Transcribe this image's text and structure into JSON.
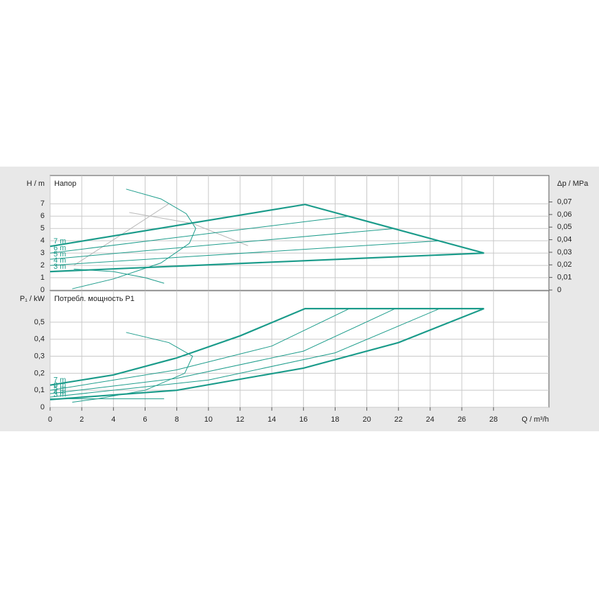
{
  "chart_data": [
    {
      "type": "line",
      "ylabel": "H / m",
      "title": "Напор",
      "y2label": "Δp / MPa",
      "xlim": [
        0,
        31.5
      ],
      "ylim": [
        0,
        9.3
      ],
      "yticks": [
        0,
        1,
        2,
        3,
        4,
        5,
        6,
        7
      ],
      "y2lim": [
        0,
        0.091
      ],
      "y2ticks": [
        0,
        {
          "value": 0.01,
          "label": "0,01"
        },
        {
          "value": 0.02,
          "label": "0,02"
        },
        {
          "value": 0.03,
          "label": "0,03"
        },
        {
          "value": 0.04,
          "label": "0,04"
        },
        {
          "value": 0.05,
          "label": "0,05"
        },
        {
          "value": 0.06,
          "label": "0,06"
        },
        {
          "value": 0.07,
          "label": "0,07"
        }
      ],
      "grid": true,
      "series": [
        {
          "name": "7 m",
          "color": "#1a9b8a",
          "line_width": 2.2,
          "x": [
            0,
            16.1,
            27.4
          ],
          "values": [
            3.55,
            6.95,
            3.0
          ]
        },
        {
          "name": "6 m",
          "color": "#1a9b8a",
          "line_width": 1,
          "x": [
            0,
            18.9
          ],
          "values": [
            3.0,
            6.0
          ]
        },
        {
          "name": "5 m",
          "color": "#1a9b8a",
          "line_width": 1,
          "x": [
            0,
            21.8
          ],
          "values": [
            2.5,
            5.0
          ]
        },
        {
          "name": "4 m",
          "color": "#1a9b8a",
          "line_width": 1,
          "x": [
            0,
            24.6
          ],
          "values": [
            2.0,
            4.0
          ]
        },
        {
          "name": "3 m",
          "color": "#1a9b8a",
          "line_width": 2.2,
          "x": [
            0,
            27.4
          ],
          "values": [
            1.5,
            3.0
          ]
        }
      ],
      "curves": [
        {
          "color": "#1a9b8a",
          "x": [
            4.8,
            7,
            8.6,
            9.2,
            8.8,
            7,
            4,
            1.4
          ],
          "values": [
            8.2,
            7.4,
            6.2,
            5.0,
            3.8,
            2.2,
            0.9,
            0.1
          ]
        },
        {
          "color": "#1a9b8a",
          "x": [
            1.5,
            4,
            6,
            7.2
          ],
          "values": [
            1.7,
            1.5,
            1.0,
            0.55
          ]
        },
        {
          "color": "#b8b8b8",
          "x": [
            1.5,
            7.5
          ],
          "values": [
            2.0,
            7.0
          ]
        },
        {
          "color": "#b8b8b8",
          "x": [
            5,
            9,
            12.5
          ],
          "values": [
            6.3,
            5.4,
            3.6
          ]
        }
      ]
    },
    {
      "type": "line",
      "ylabel": "P₁ / kW",
      "title": "Потребл. мощность P1",
      "xlabel": "Q / m³/h",
      "xlim": [
        0,
        31.5
      ],
      "xticks": [
        0,
        2,
        4,
        6,
        8,
        10,
        12,
        14,
        16,
        18,
        20,
        22,
        24,
        26,
        28
      ],
      "ylim": [
        0,
        0.685
      ],
      "yticks": [
        0,
        {
          "value": 0.1,
          "label": "0,1"
        },
        {
          "value": 0.2,
          "label": "0,2"
        },
        {
          "value": 0.3,
          "label": "0,3"
        },
        {
          "value": 0.4,
          "label": "0,4"
        },
        {
          "value": 0.5,
          "label": "0,5"
        }
      ],
      "grid": true,
      "series": [
        {
          "name": "7 m",
          "color": "#1a9b8a",
          "line_width": 2.2,
          "x": [
            0,
            4,
            8,
            12,
            16.1,
            27.4
          ],
          "values": [
            0.13,
            0.19,
            0.29,
            0.42,
            0.58,
            0.58
          ]
        },
        {
          "name": "6 m",
          "color": "#1a9b8a",
          "line_width": 1,
          "x": [
            0,
            8,
            14,
            18.9
          ],
          "values": [
            0.1,
            0.22,
            0.36,
            0.58
          ]
        },
        {
          "name": "5 m",
          "color": "#1a9b8a",
          "line_width": 1,
          "x": [
            0,
            8,
            16,
            21.8
          ],
          "values": [
            0.08,
            0.17,
            0.33,
            0.58
          ]
        },
        {
          "name": "4 m",
          "color": "#1a9b8a",
          "line_width": 1,
          "x": [
            0,
            10,
            18,
            24.6
          ],
          "values": [
            0.06,
            0.16,
            0.32,
            0.58
          ]
        },
        {
          "name": "3 m",
          "color": "#1a9b8a",
          "line_width": 2.2,
          "x": [
            0,
            8,
            16,
            22,
            27.4
          ],
          "values": [
            0.045,
            0.1,
            0.23,
            0.38,
            0.58
          ]
        }
      ],
      "curves": [
        {
          "color": "#1a9b8a",
          "x": [
            4.8,
            7.5,
            9,
            8.5,
            6,
            3,
            1.4
          ],
          "values": [
            0.44,
            0.38,
            0.3,
            0.2,
            0.1,
            0.05,
            0.03
          ]
        },
        {
          "color": "#1a9b8a",
          "x": [
            0,
            7.2
          ],
          "values": [
            0.05,
            0.05
          ]
        }
      ]
    }
  ]
}
